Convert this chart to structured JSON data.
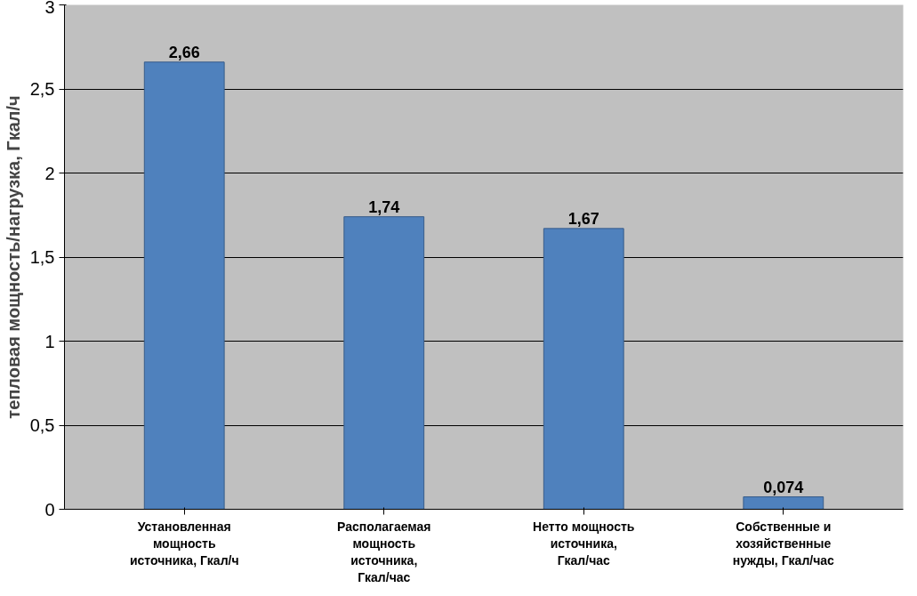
{
  "chart_data": {
    "type": "bar",
    "ylabel": "тепловая мощность/нагрузка, Гкал/ч",
    "categories": [
      "Установленная мощность источника, Гкал/ч",
      "Располагаемая мощность источника, Гкал/час",
      "Нетто мощность источника, Гкал/час",
      "Собственные и хозяйственные нужды, Гкал/час"
    ],
    "values": [
      2.66,
      1.74,
      1.67,
      0.074
    ],
    "value_labels": [
      "2,66",
      "1,74",
      "1,67",
      "0,074"
    ],
    "color": "#4f81bd",
    "ylim": [
      0,
      3
    ],
    "yticks": [
      0,
      {
        "value": 0.5,
        "label": "0,5"
      },
      1,
      {
        "value": 1.5,
        "label": "1,5"
      },
      2,
      {
        "value": 2.5,
        "label": "2,5"
      },
      3
    ],
    "grid": "y"
  }
}
